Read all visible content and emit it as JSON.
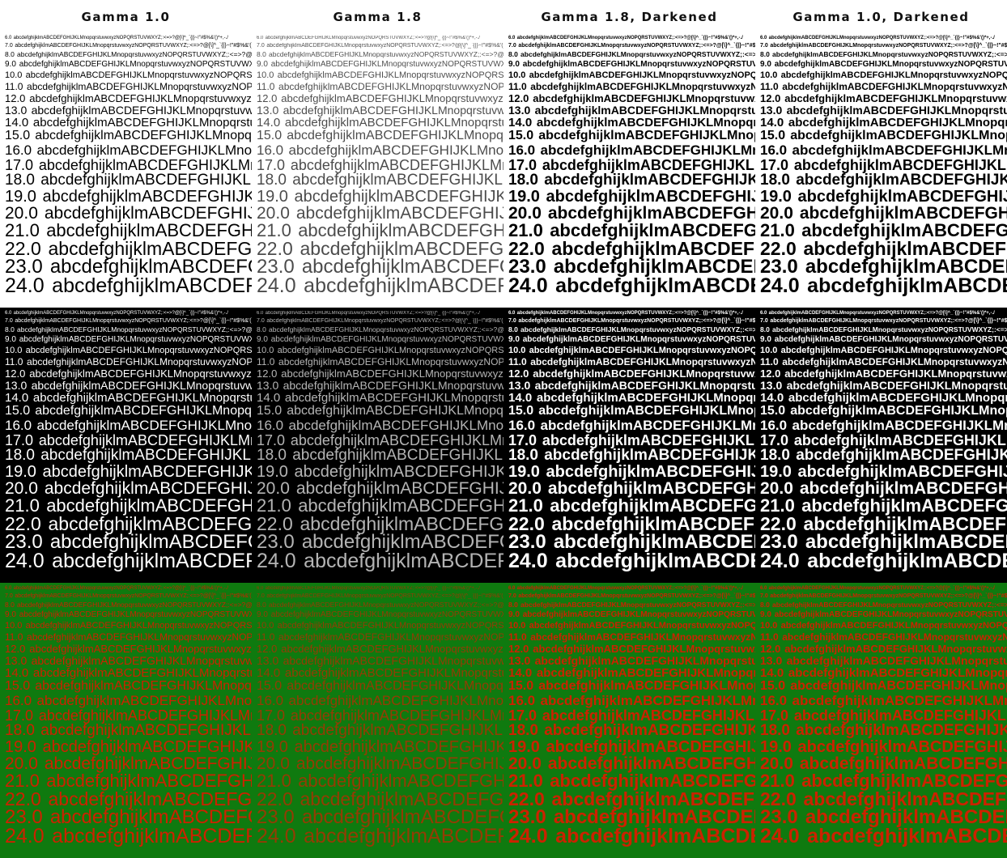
{
  "headers": [
    "Gamma 1.0",
    "Gamma 1.8",
    "Gamma 1.8, Darkened",
    "Gamma 1.0, Darkened"
  ],
  "lines": [
    {
      "size": "6.0",
      "text": "abcdefghijklmABCDEFGHIJKLMnopqrstuvwxyzNOPQRSTUVWXYZ;:<=>?@[\\]^_`{|}~!\"#$%&'()*+,-./"
    },
    {
      "size": "7.0",
      "text": "abcdefghijklmABCDEFGHIJKLMnopqrstuvwxyzNOPQRSTUVWXYZ;:<=>?@[\\]^_`{|}~!\"#$%&'()*+,-./"
    },
    {
      "size": "8.0",
      "text": "abcdefghijklmABCDEFGHIJKLMnopqrstuvwxyzNOPQRSTUVWXYZ;:<=>?@[\\]^_`{|}~!\"#"
    },
    {
      "size": "9.0",
      "text": "abcdefghijklmABCDEFGHIJKLMnopqrstuvwxyzNOPQRSTUVWXYZ;:<=>?@["
    },
    {
      "size": "10.0",
      "text": "abcdefghijklmABCDEFGHIJKLMnopqrstuvwxyzNOPQRSTUVWXYZ"
    },
    {
      "size": "11.0",
      "text": "abcdefghijklmABCDEFGHIJKLMnopqrstuvwxyzNOPQRSTU"
    },
    {
      "size": "12.0",
      "text": "abcdefghijklmABCDEFGHIJKLMnopqrstuvwxyzNOPQ"
    },
    {
      "size": "13.0",
      "text": "abcdefghijklmABCDEFGHIJKLMnopqrstuvwxyzN"
    },
    {
      "size": "14.0",
      "text": "abcdefghijklmABCDEFGHIJKLMnopqrstuvwx"
    },
    {
      "size": "15.0",
      "text": "abcdefghijklmABCDEFGHIJKLMnopqrstuv"
    },
    {
      "size": "16.0",
      "text": "abcdefghijklmABCDEFGHIJKLMnopqrst"
    },
    {
      "size": "17.0",
      "text": "abcdefghijklmABCDEFGHIJKLMnopq"
    },
    {
      "size": "18.0",
      "text": "abcdefghijklmABCDEFGHIJKLMno"
    },
    {
      "size": "19.0",
      "text": "abcdefghijklmABCDEFGHIJKLM"
    },
    {
      "size": "20.0",
      "text": "abcdefghijklmABCDEFGHIJKL"
    },
    {
      "size": "21.0",
      "text": "abcdefghijklmABCDEFGHIJK"
    },
    {
      "size": "22.0",
      "text": "abcdefghijklmABCDEFGHIJ"
    },
    {
      "size": "23.0",
      "text": "abcdefghijklmABCDEFGH"
    },
    {
      "size": "24.0",
      "text": "abcdefghijklmABCDEFG"
    }
  ],
  "bands": [
    {
      "name": "black-on-white",
      "background": "#ffffff",
      "text_color": "#000000"
    },
    {
      "name": "white-on-black",
      "background": "#000000",
      "text_color": "#ffffff"
    },
    {
      "name": "red-on-green",
      "background": "#0f7a0f",
      "text_color": "#cc2200"
    }
  ],
  "columns": [
    {
      "header": "Gamma 1.0",
      "weight": "normal",
      "opacity": 1.0
    },
    {
      "header": "Gamma 1.8",
      "weight": "normal",
      "opacity": 0.7
    },
    {
      "header": "Gamma 1.8, Darkened",
      "weight": "bold",
      "opacity": 1.0
    },
    {
      "header": "Gamma 1.0, Darkened",
      "weight": "bold",
      "opacity": 1.0
    }
  ]
}
